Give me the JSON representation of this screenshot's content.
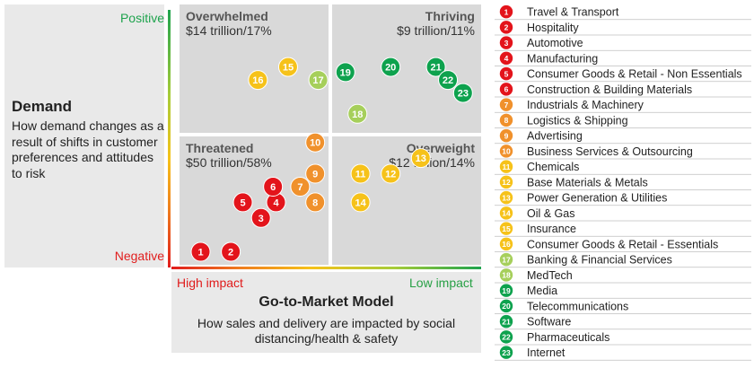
{
  "demand": {
    "positive_label": "Positive",
    "negative_label": "Negative",
    "title": "Demand",
    "description": "How demand changes as a result of shifts in customer preferences and attitudes to risk"
  },
  "go_to_market": {
    "high_label": "High impact",
    "low_label": "Low impact",
    "title": "Go-to-Market Model",
    "description": "How sales and delivery are impacted by social distancing/health & safety"
  },
  "quadrants": {
    "overwhelmed": {
      "title": "Overwhelmed",
      "value": "$14 trillion/17%"
    },
    "thriving": {
      "title": "Thriving",
      "value": "$9 trillion/11%"
    },
    "threatened": {
      "title": "Threatened",
      "value": "$50 trillion/58%"
    },
    "overweight": {
      "title": "Overweight",
      "value": "$12 trillion/14%"
    }
  },
  "colors": {
    "red": "#e3141b",
    "orange": "#f0912c",
    "yellow": "#f6c21a",
    "lightgreen": "#a6cf5b",
    "green": "#0ea24e",
    "panel": "#e9e9e9",
    "quadrant": "#d9d9d9",
    "positive_text": "#1ea34d",
    "negative_text": "#e11d1d"
  },
  "chart_data": {
    "type": "scatter",
    "xlabel": "Go-to-Market Model",
    "ylabel": "Demand",
    "xlim": [
      0,
      1
    ],
    "ylim": [
      0,
      1
    ],
    "grid": false,
    "legend_position": "right",
    "points": [
      {
        "id": "1",
        "x": 0.07,
        "y": 0.05,
        "color": "red"
      },
      {
        "id": "2",
        "x": 0.17,
        "y": 0.05,
        "color": "red"
      },
      {
        "id": "3",
        "x": 0.27,
        "y": 0.18,
        "color": "red"
      },
      {
        "id": "4",
        "x": 0.32,
        "y": 0.24,
        "color": "red"
      },
      {
        "id": "5",
        "x": 0.21,
        "y": 0.24,
        "color": "red"
      },
      {
        "id": "6",
        "x": 0.31,
        "y": 0.3,
        "color": "red"
      },
      {
        "id": "7",
        "x": 0.4,
        "y": 0.3,
        "color": "orange"
      },
      {
        "id": "8",
        "x": 0.45,
        "y": 0.24,
        "color": "orange"
      },
      {
        "id": "9",
        "x": 0.45,
        "y": 0.35,
        "color": "orange"
      },
      {
        "id": "10",
        "x": 0.45,
        "y": 0.47,
        "color": "orange"
      },
      {
        "id": "11",
        "x": 0.6,
        "y": 0.35,
        "color": "yellow"
      },
      {
        "id": "12",
        "x": 0.7,
        "y": 0.35,
        "color": "yellow"
      },
      {
        "id": "13",
        "x": 0.8,
        "y": 0.41,
        "color": "yellow"
      },
      {
        "id": "14",
        "x": 0.6,
        "y": 0.24,
        "color": "yellow"
      },
      {
        "id": "15",
        "x": 0.36,
        "y": 0.76,
        "color": "yellow"
      },
      {
        "id": "16",
        "x": 0.26,
        "y": 0.71,
        "color": "yellow"
      },
      {
        "id": "17",
        "x": 0.46,
        "y": 0.71,
        "color": "lightgreen"
      },
      {
        "id": "18",
        "x": 0.59,
        "y": 0.58,
        "color": "lightgreen"
      },
      {
        "id": "19",
        "x": 0.55,
        "y": 0.74,
        "color": "green"
      },
      {
        "id": "20",
        "x": 0.7,
        "y": 0.76,
        "color": "green"
      },
      {
        "id": "21",
        "x": 0.85,
        "y": 0.76,
        "color": "green"
      },
      {
        "id": "22",
        "x": 0.89,
        "y": 0.71,
        "color": "green"
      },
      {
        "id": "23",
        "x": 0.94,
        "y": 0.66,
        "color": "green"
      }
    ],
    "legend": [
      {
        "id": "1",
        "label": "Travel & Transport",
        "color": "red"
      },
      {
        "id": "2",
        "label": "Hospitality",
        "color": "red"
      },
      {
        "id": "3",
        "label": "Automotive",
        "color": "red"
      },
      {
        "id": "4",
        "label": "Manufacturing",
        "color": "red"
      },
      {
        "id": "5",
        "label": "Consumer Goods  & Retail - Non Essentials",
        "color": "red"
      },
      {
        "id": "6",
        "label": "Construction & Building Materials",
        "color": "red"
      },
      {
        "id": "7",
        "label": "Industrials & Machinery",
        "color": "orange"
      },
      {
        "id": "8",
        "label": "Logistics & Shipping",
        "color": "orange"
      },
      {
        "id": "9",
        "label": "Advertising",
        "color": "orange"
      },
      {
        "id": "10",
        "label": "Business Services & Outsourcing",
        "color": "orange"
      },
      {
        "id": "11",
        "label": "Chemicals",
        "color": "yellow"
      },
      {
        "id": "12",
        "label": "Base Materials & Metals",
        "color": "yellow"
      },
      {
        "id": "13",
        "label": "Power Generation & Utilities",
        "color": "yellow"
      },
      {
        "id": "14",
        "label": "Oil & Gas",
        "color": "yellow"
      },
      {
        "id": "15",
        "label": "Insurance",
        "color": "yellow"
      },
      {
        "id": "16",
        "label": "Consumer Goods  & Retail - Essentials",
        "color": "yellow"
      },
      {
        "id": "17",
        "label": "Banking & Financial Services",
        "color": "lightgreen"
      },
      {
        "id": "18",
        "label": "MedTech",
        "color": "lightgreen"
      },
      {
        "id": "19",
        "label": "Media",
        "color": "green"
      },
      {
        "id": "20",
        "label": "Telecommunications",
        "color": "green"
      },
      {
        "id": "21",
        "label": "Software",
        "color": "green"
      },
      {
        "id": "22",
        "label": "Pharmaceuticals",
        "color": "green"
      },
      {
        "id": "23",
        "label": "Internet",
        "color": "green"
      }
    ]
  }
}
